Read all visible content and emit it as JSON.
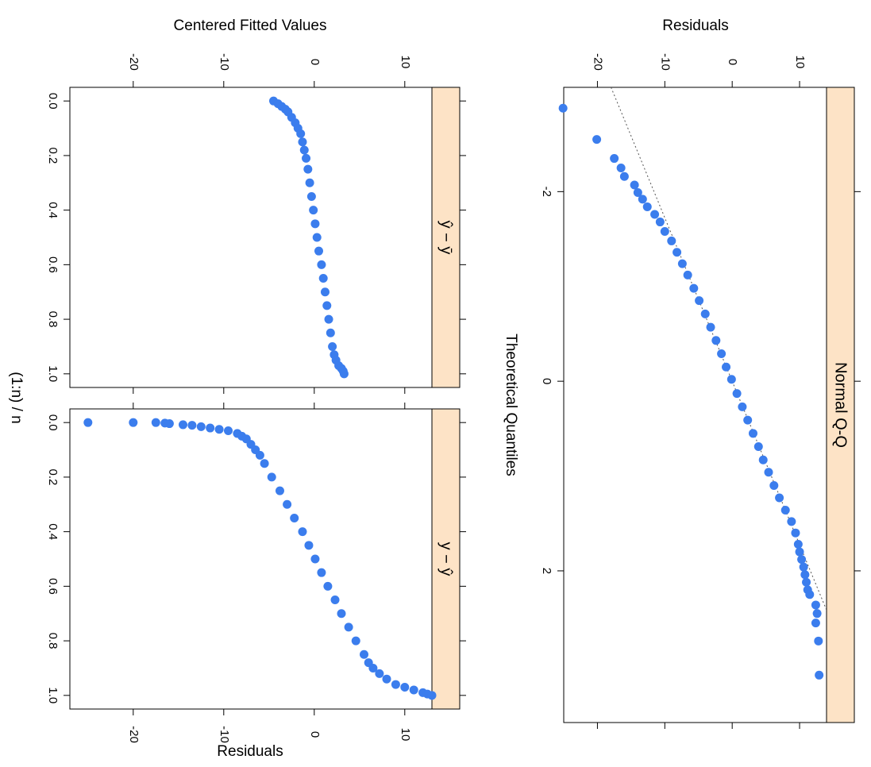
{
  "figure_title": "",
  "chart_data": [
    {
      "type": "scatter",
      "panel": "qq",
      "strip_label": "Normal Q-Q",
      "xlabel": "Theoretical Quantiles",
      "ylabel": "Residuals",
      "xlim": [
        -3.1,
        3.6
      ],
      "ylim": [
        -25,
        14
      ],
      "x_ticks": [
        "-2",
        "0",
        "2"
      ],
      "y_ticks": [
        "-20",
        "-10",
        "0",
        "10"
      ],
      "reference_line": {
        "intercept": 0,
        "slope": 5.8,
        "style": "dotted",
        "color": "#555555"
      },
      "point_color": "#3b7ded",
      "series": [
        {
          "x": [
            -2.88,
            -2.55,
            -2.35,
            -2.25,
            -2.16,
            -2.07,
            -1.99,
            -1.92,
            -1.84,
            -1.76,
            -1.68,
            -1.58,
            -1.48,
            -1.36,
            -1.24,
            -1.12,
            -0.98,
            -0.85,
            -0.71,
            -0.57,
            -0.43,
            -0.29,
            -0.15,
            -0.02,
            0.13,
            0.27,
            0.41,
            0.55,
            0.69,
            0.83,
            0.96,
            1.1,
            1.23,
            1.36,
            1.48,
            1.6,
            1.72,
            1.8,
            1.88,
            1.96,
            2.04,
            2.12,
            2.2,
            2.25,
            2.36,
            2.45,
            2.55,
            2.74,
            3.1
          ],
          "y": [
            -25.1,
            -20.1,
            -17.5,
            -16.5,
            -16.0,
            -14.5,
            -14.0,
            -13.3,
            -12.6,
            -11.5,
            -10.7,
            -10.0,
            -9.0,
            -8.2,
            -7.4,
            -6.6,
            -5.7,
            -4.9,
            -4.0,
            -3.2,
            -2.4,
            -1.6,
            -0.9,
            -0.1,
            0.7,
            1.5,
            2.3,
            3.1,
            3.9,
            4.6,
            5.4,
            6.2,
            7.0,
            7.9,
            8.8,
            9.4,
            9.8,
            10.0,
            10.3,
            10.6,
            10.8,
            11.0,
            11.2,
            11.5,
            12.4,
            12.6,
            12.4,
            12.8,
            12.9
          ]
        }
      ]
    },
    {
      "type": "scatter",
      "panel": "fitted",
      "strip_label": "ŷ − ȳ",
      "xlabel": "(1:n) / n",
      "ylabel": "Centered Fitted Values",
      "xlim": [
        -0.05,
        1.05
      ],
      "ylim": [
        -27,
        13
      ],
      "x_ticks": [
        "0.0",
        "0.2",
        "0.4",
        "0.6",
        "0.8",
        "1.0"
      ],
      "y_ticks": [
        "-20",
        "-10",
        "0",
        "10"
      ],
      "point_color": "#3b7ded",
      "series": [
        {
          "x": [
            0.0,
            0.01,
            0.02,
            0.03,
            0.04,
            0.06,
            0.08,
            0.1,
            0.12,
            0.15,
            0.18,
            0.21,
            0.25,
            0.3,
            0.35,
            0.4,
            0.45,
            0.5,
            0.55,
            0.6,
            0.65,
            0.7,
            0.75,
            0.8,
            0.85,
            0.9,
            0.93,
            0.95,
            0.97,
            0.98,
            0.99,
            1.0
          ],
          "y": [
            -4.5,
            -4.0,
            -3.6,
            -3.2,
            -2.9,
            -2.5,
            -2.1,
            -1.8,
            -1.5,
            -1.3,
            -1.1,
            -0.9,
            -0.7,
            -0.5,
            -0.3,
            -0.1,
            0.1,
            0.3,
            0.5,
            0.8,
            1.0,
            1.2,
            1.4,
            1.6,
            1.8,
            2.0,
            2.2,
            2.4,
            2.7,
            3.0,
            3.2,
            3.3
          ]
        }
      ]
    },
    {
      "type": "scatter",
      "panel": "residuals",
      "strip_label": "y − ŷ",
      "xlabel": "(1:n) / n",
      "ylabel": "Residuals",
      "xlim": [
        -0.05,
        1.05
      ],
      "ylim": [
        -27,
        13
      ],
      "x_ticks": [
        "0.0",
        "0.2",
        "0.4",
        "0.6",
        "0.8",
        "1.0"
      ],
      "y_ticks": [
        "-20",
        "-10",
        "0",
        "10"
      ],
      "point_color": "#3b7ded",
      "series": [
        {
          "x": [
            0.0,
            0.0,
            0.0,
            0.002,
            0.004,
            0.008,
            0.01,
            0.015,
            0.02,
            0.025,
            0.03,
            0.04,
            0.05,
            0.06,
            0.08,
            0.1,
            0.12,
            0.15,
            0.2,
            0.25,
            0.3,
            0.35,
            0.4,
            0.45,
            0.5,
            0.55,
            0.6,
            0.65,
            0.7,
            0.75,
            0.8,
            0.85,
            0.88,
            0.9,
            0.92,
            0.94,
            0.96,
            0.97,
            0.98,
            0.99,
            0.995,
            1.0
          ],
          "y": [
            -25.0,
            -20.0,
            -17.5,
            -16.5,
            -16.0,
            -14.5,
            -13.5,
            -12.5,
            -11.5,
            -10.5,
            -9.5,
            -8.5,
            -8.0,
            -7.5,
            -7.0,
            -6.5,
            -6.0,
            -5.5,
            -4.7,
            -3.8,
            -3.0,
            -2.2,
            -1.3,
            -0.6,
            0.1,
            0.8,
            1.5,
            2.3,
            3.0,
            3.8,
            4.6,
            5.5,
            6.0,
            6.5,
            7.2,
            8.0,
            9.0,
            10.0,
            11.0,
            12.0,
            12.5,
            13.0
          ]
        }
      ]
    }
  ]
}
